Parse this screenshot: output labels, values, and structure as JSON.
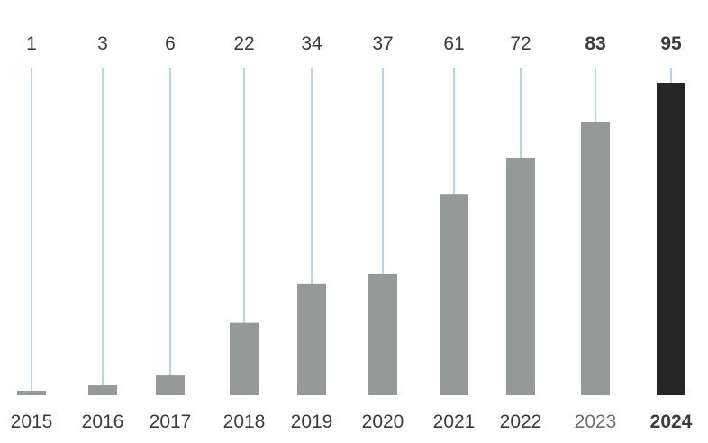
{
  "chart_data": {
    "type": "bar",
    "title": "",
    "xlabel": "",
    "ylabel": "",
    "categories": [
      "2015",
      "2016",
      "2017",
      "2018",
      "2019",
      "2020",
      "2021",
      "2022",
      "2023",
      "2024"
    ],
    "values": [
      1,
      3,
      6,
      22,
      34,
      37,
      61,
      72,
      83,
      95
    ],
    "ylim": [
      0,
      95
    ],
    "grid": false,
    "legend": "none",
    "highlight_index": 9,
    "colors": {
      "bar": "#959998",
      "highlight_bar": "#262626",
      "leader_line": "#9fc9e2",
      "text": "#3c3c3c",
      "muted_text": "#6e6e6e"
    }
  }
}
